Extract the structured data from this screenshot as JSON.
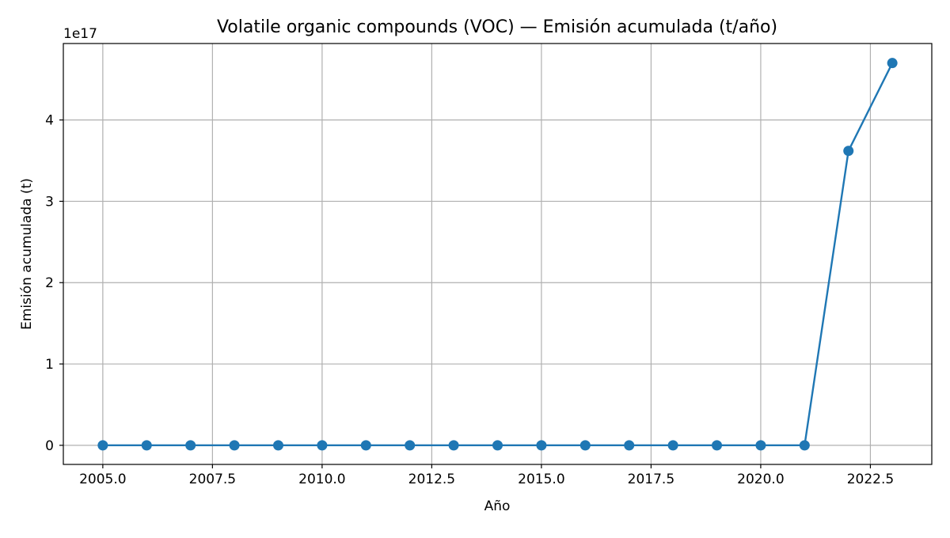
{
  "chart_data": {
    "type": "line",
    "title": "Volatile organic compounds (VOC) — Emisión acumulada (t/año)",
    "xlabel": "Año",
    "ylabel": "Emisión acumulada (t)",
    "y_offset_label": "1e17",
    "xlim": [
      2004.1,
      2023.9
    ],
    "ylim": [
      -2.35e+16,
      4.94e+17
    ],
    "x_ticks": [
      2005.0,
      2007.5,
      2010.0,
      2012.5,
      2015.0,
      2017.5,
      2020.0,
      2022.5
    ],
    "x_tick_labels": [
      "2005.0",
      "2007.5",
      "2010.0",
      "2012.5",
      "2015.0",
      "2017.5",
      "2020.0",
      "2022.5"
    ],
    "y_ticks": [
      0,
      1e+17,
      2e+17,
      3e+17,
      4e+17
    ],
    "y_tick_labels": [
      "0",
      "1",
      "2",
      "3",
      "4"
    ],
    "grid": true,
    "series": [
      {
        "color": "#1f77b4",
        "marker": "circle",
        "x": [
          2005,
          2006,
          2007,
          2008,
          2009,
          2010,
          2011,
          2012,
          2013,
          2014,
          2015,
          2016,
          2017,
          2018,
          2019,
          2020,
          2021,
          2022,
          2023
        ],
        "y": [
          0,
          0,
          0,
          0,
          0,
          0,
          0,
          0,
          0,
          0,
          0,
          0,
          0,
          0,
          0,
          0,
          0,
          3.62e+17,
          4.7e+17
        ]
      }
    ]
  }
}
